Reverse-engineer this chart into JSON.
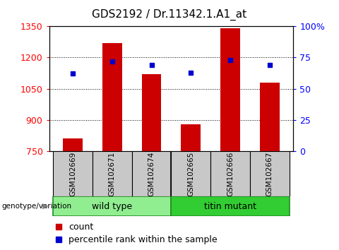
{
  "title": "GDS2192 / Dr.11342.1.A1_at",
  "samples": [
    "GSM102669",
    "GSM102671",
    "GSM102674",
    "GSM102665",
    "GSM102666",
    "GSM102667"
  ],
  "counts": [
    810,
    1270,
    1120,
    880,
    1340,
    1080
  ],
  "percentiles": [
    62,
    72,
    69,
    63,
    73,
    69
  ],
  "groups": [
    {
      "label": "wild type",
      "indices": [
        0,
        1,
        2
      ],
      "color": "#90EE90"
    },
    {
      "label": "titin mutant",
      "indices": [
        3,
        4,
        5
      ],
      "color": "#32CD32"
    }
  ],
  "left_ylim": [
    750,
    1350
  ],
  "left_yticks": [
    750,
    900,
    1050,
    1200,
    1350
  ],
  "right_ylim": [
    0,
    100
  ],
  "right_yticks": [
    0,
    25,
    50,
    75,
    100
  ],
  "right_yticklabels": [
    "0",
    "25",
    "50",
    "75",
    "100%"
  ],
  "bar_color": "#CC0000",
  "dot_color": "#0000CC",
  "bar_width": 0.5,
  "title_fontsize": 11,
  "tick_fontsize": 9,
  "label_fontsize": 9,
  "legend_fontsize": 9,
  "sample_fontsize": 7.5,
  "fig_width": 4.8,
  "fig_height": 3.54,
  "fig_dpi": 100
}
